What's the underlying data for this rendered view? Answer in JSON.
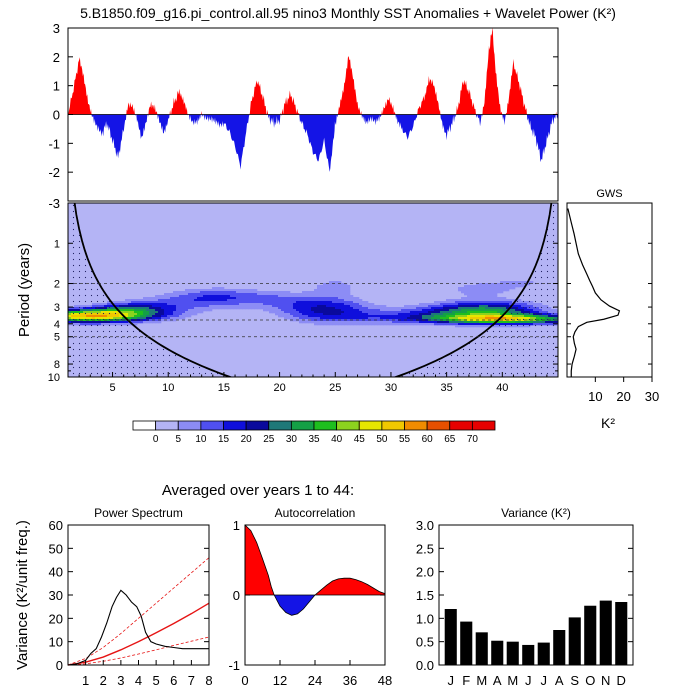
{
  "page": {
    "title": "5.B1850.f09_g16.pi_control.all.95 nino3 Monthly SST Anomalies + Wavelet Power (K²)",
    "averaged_title": "Averaged over years 1 to 44:"
  },
  "colors": {
    "positive": "#ff0000",
    "negative": "#1414e6",
    "line": "#000000",
    "red_fit": "#e61414"
  },
  "chart_data": [
    {
      "id": "anomaly",
      "type": "area",
      "xlim": [
        1,
        45
      ],
      "ylim": [
        -3,
        3
      ],
      "yticks": [
        -3,
        -2,
        -1,
        0,
        1,
        2,
        3
      ],
      "xlabel": "",
      "ylabel": "",
      "baseline": 0,
      "points": [
        [
          1.0,
          0.0
        ],
        [
          1.5,
          0.9
        ],
        [
          2.0,
          1.9
        ],
        [
          2.4,
          1.3
        ],
        [
          2.8,
          0.5
        ],
        [
          3.2,
          0.0
        ],
        [
          3.6,
          -0.4
        ],
        [
          4.0,
          -0.7
        ],
        [
          4.5,
          -0.3
        ],
        [
          5.0,
          -0.9
        ],
        [
          5.5,
          -1.5
        ],
        [
          6.0,
          -0.5
        ],
        [
          6.4,
          0.3
        ],
        [
          6.8,
          0.2
        ],
        [
          7.2,
          -0.2
        ],
        [
          7.6,
          -0.8
        ],
        [
          8.0,
          -0.2
        ],
        [
          8.4,
          0.4
        ],
        [
          8.8,
          0.2
        ],
        [
          9.2,
          -0.3
        ],
        [
          9.6,
          -0.7
        ],
        [
          10.0,
          -0.2
        ],
        [
          10.5,
          0.4
        ],
        [
          11.0,
          0.8
        ],
        [
          11.4,
          0.4
        ],
        [
          11.8,
          -0.1
        ],
        [
          12.2,
          -0.3
        ],
        [
          12.6,
          -0.2
        ],
        [
          13.0,
          0.1
        ],
        [
          13.4,
          -0.1
        ],
        [
          13.8,
          -0.2
        ],
        [
          14.2,
          -0.3
        ],
        [
          14.6,
          -0.4
        ],
        [
          15.0,
          -0.3
        ],
        [
          15.5,
          -0.6
        ],
        [
          16.0,
          -1.1
        ],
        [
          16.5,
          -1.8
        ],
        [
          17.0,
          -0.6
        ],
        [
          17.5,
          0.5
        ],
        [
          18.0,
          1.2
        ],
        [
          18.5,
          0.6
        ],
        [
          19.0,
          -0.1
        ],
        [
          19.5,
          -0.3
        ],
        [
          20.0,
          -0.2
        ],
        [
          20.5,
          0.4
        ],
        [
          21.0,
          0.7
        ],
        [
          21.5,
          0.2
        ],
        [
          22.0,
          -0.3
        ],
        [
          22.5,
          -0.7
        ],
        [
          23.0,
          -1.3
        ],
        [
          23.5,
          -1.6
        ],
        [
          24.0,
          -0.9
        ],
        [
          24.5,
          -2.0
        ],
        [
          24.8,
          -1.0
        ],
        [
          25.0,
          -0.3
        ],
        [
          25.4,
          0.4
        ],
        [
          25.8,
          1.0
        ],
        [
          26.2,
          2.0
        ],
        [
          26.6,
          1.2
        ],
        [
          27.0,
          0.3
        ],
        [
          27.4,
          0.0
        ],
        [
          27.8,
          -0.2
        ],
        [
          28.2,
          -0.1
        ],
        [
          28.6,
          -0.3
        ],
        [
          29.0,
          -0.2
        ],
        [
          29.4,
          0.2
        ],
        [
          29.8,
          0.6
        ],
        [
          30.2,
          0.3
        ],
        [
          30.6,
          -0.2
        ],
        [
          31.0,
          -0.5
        ],
        [
          31.5,
          -0.8
        ],
        [
          32.0,
          -0.4
        ],
        [
          32.5,
          0.2
        ],
        [
          33.0,
          0.6
        ],
        [
          33.4,
          1.2
        ],
        [
          33.8,
          1.0
        ],
        [
          34.2,
          0.4
        ],
        [
          34.6,
          -0.3
        ],
        [
          35.0,
          -0.7
        ],
        [
          35.5,
          -0.3
        ],
        [
          36.0,
          0.2
        ],
        [
          36.5,
          1.2
        ],
        [
          37.0,
          0.8
        ],
        [
          37.5,
          0.2
        ],
        [
          38.0,
          -0.3
        ],
        [
          38.4,
          0.4
        ],
        [
          38.8,
          2.2
        ],
        [
          39.1,
          3.0
        ],
        [
          39.4,
          1.5
        ],
        [
          39.8,
          0.3
        ],
        [
          40.2,
          -0.2
        ],
        [
          40.6,
          0.6
        ],
        [
          41.0,
          1.8
        ],
        [
          41.5,
          1.1
        ],
        [
          42.0,
          0.3
        ],
        [
          42.5,
          -0.4
        ],
        [
          43.0,
          -0.8
        ],
        [
          43.5,
          -1.6
        ],
        [
          44.0,
          -0.9
        ],
        [
          44.5,
          -0.2
        ],
        [
          45.0,
          0.0
        ]
      ]
    },
    {
      "id": "wavelet",
      "type": "heatmap",
      "xlim": [
        1,
        45
      ],
      "ylim": [
        0.5,
        10
      ],
      "yscale": "log",
      "xticks": [
        5,
        10,
        15,
        20,
        25,
        30,
        35,
        40
      ],
      "yticks": [
        1,
        2,
        3,
        4,
        5,
        8,
        10
      ],
      "ylabel": "Period (years)",
      "xlabel": "",
      "dashed_periods": [
        2,
        3.75,
        5
      ],
      "levels": [
        0,
        5,
        10,
        15,
        20,
        25,
        30,
        35,
        40,
        45,
        50,
        55,
        60,
        65,
        70
      ],
      "level_colors": [
        "#ffffff",
        "#b4b4f5",
        "#8c8cf5",
        "#5050f0",
        "#0f0fdc",
        "#0a0a9c",
        "#1e7878",
        "#14a046",
        "#1ebe1e",
        "#8cd21e",
        "#e6e600",
        "#f0c800",
        "#f08c00",
        "#e65000",
        "#e60000"
      ],
      "blobs": [
        {
          "cx": 3.0,
          "cy": 3.5,
          "sx": 4.0,
          "sy": 0.08,
          "amp": 56
        },
        {
          "cx": 6.5,
          "cy": 3.1,
          "sx": 2.5,
          "sy": 0.08,
          "amp": 18
        },
        {
          "cx": 10.0,
          "cy": 2.9,
          "sx": 3.5,
          "sy": 0.12,
          "amp": 10
        },
        {
          "cx": 14.0,
          "cy": 2.5,
          "sx": 3.0,
          "sy": 0.12,
          "amp": 14
        },
        {
          "cx": 16.0,
          "cy": 4.3,
          "sx": 3.0,
          "sy": 0.06,
          "amp": 7
        },
        {
          "cx": 19.0,
          "cy": 2.6,
          "sx": 3.0,
          "sy": 0.12,
          "amp": 8
        },
        {
          "cx": 24.0,
          "cy": 3.1,
          "sx": 3.0,
          "sy": 0.16,
          "amp": 22
        },
        {
          "cx": 25.0,
          "cy": 2.1,
          "sx": 1.5,
          "sy": 0.1,
          "amp": 10
        },
        {
          "cx": 28.0,
          "cy": 3.6,
          "sx": 3.5,
          "sy": 0.1,
          "amp": 8
        },
        {
          "cx": 33.0,
          "cy": 3.4,
          "sx": 3.0,
          "sy": 0.1,
          "amp": 9
        },
        {
          "cx": 38.5,
          "cy": 3.2,
          "sx": 3.5,
          "sy": 0.12,
          "amp": 34
        },
        {
          "cx": 40.5,
          "cy": 3.7,
          "sx": 5.0,
          "sy": 0.06,
          "amp": 42
        },
        {
          "cx": 38.0,
          "cy": 2.2,
          "sx": 2.5,
          "sy": 0.1,
          "amp": 10
        },
        {
          "cx": 42.0,
          "cy": 1.95,
          "sx": 2.0,
          "sy": 0.08,
          "amp": 7
        }
      ]
    },
    {
      "id": "colorbar",
      "type": "legend",
      "labels": [
        "0",
        "5",
        "10",
        "15",
        "20",
        "25",
        "30",
        "35",
        "40",
        "45",
        "50",
        "55",
        "60",
        "65",
        "70"
      ]
    },
    {
      "id": "gws",
      "type": "line",
      "title": "GWS",
      "xlim": [
        0,
        30
      ],
      "xticks": [
        10,
        20,
        30
      ],
      "xlabel": "K²",
      "points": [
        [
          0.3,
          0.55
        ],
        [
          1.5,
          0.7
        ],
        [
          2.5,
          0.85
        ],
        [
          3.2,
          1.0
        ],
        [
          4.0,
          1.2
        ],
        [
          5.5,
          1.45
        ],
        [
          7.0,
          1.7
        ],
        [
          8.0,
          1.9
        ],
        [
          9.0,
          2.1
        ],
        [
          10.0,
          2.35
        ],
        [
          12.0,
          2.65
        ],
        [
          15.0,
          2.95
        ],
        [
          18.5,
          3.2
        ],
        [
          18.0,
          3.45
        ],
        [
          13.0,
          3.7
        ],
        [
          7.0,
          3.9
        ],
        [
          4.0,
          4.2
        ],
        [
          2.8,
          4.6
        ],
        [
          2.2,
          5.0
        ],
        [
          2.6,
          5.6
        ],
        [
          3.2,
          6.2
        ],
        [
          2.6,
          7.0
        ],
        [
          1.8,
          8.0
        ],
        [
          1.5,
          9.0
        ],
        [
          1.5,
          10.0
        ]
      ]
    },
    {
      "id": "power_spectrum",
      "type": "line",
      "title": "Power Spectrum",
      "xlim": [
        0,
        8
      ],
      "ylim": [
        0,
        60
      ],
      "xticks": [
        0,
        1,
        2,
        3,
        4,
        5,
        6,
        7,
        8
      ],
      "yticks": [
        0,
        10,
        20,
        30,
        40,
        50,
        60
      ],
      "ylabel": "Variance (K²/unit freq.)",
      "spectrum": [
        [
          0,
          0
        ],
        [
          0.5,
          0.5
        ],
        [
          1,
          2
        ],
        [
          1.3,
          5
        ],
        [
          1.6,
          7
        ],
        [
          1.9,
          12
        ],
        [
          2.2,
          18
        ],
        [
          2.5,
          25
        ],
        [
          2.75,
          29
        ],
        [
          3.0,
          32
        ],
        [
          3.3,
          30
        ],
        [
          3.6,
          27
        ],
        [
          3.9,
          25
        ],
        [
          4.15,
          21
        ],
        [
          4.4,
          14
        ],
        [
          4.7,
          10
        ],
        [
          5.0,
          9
        ],
        [
          5.5,
          8
        ],
        [
          6.0,
          7.5
        ],
        [
          6.5,
          7
        ],
        [
          7.0,
          7
        ],
        [
          7.5,
          7
        ],
        [
          8.0,
          7
        ]
      ],
      "red_noise": [
        [
          0,
          0
        ],
        [
          1,
          1.2
        ],
        [
          2,
          3.4
        ],
        [
          3,
          6.5
        ],
        [
          4,
          10
        ],
        [
          5,
          13.8
        ],
        [
          6,
          17.8
        ],
        [
          7,
          22
        ],
        [
          8,
          26.5
        ]
      ],
      "red_noise_upper": [
        [
          0,
          0
        ],
        [
          1,
          2.8
        ],
        [
          2,
          7.5
        ],
        [
          3,
          13.5
        ],
        [
          4,
          20
        ],
        [
          5,
          26.5
        ],
        [
          6,
          33
        ],
        [
          7,
          39.5
        ],
        [
          8,
          46
        ]
      ],
      "red_noise_lower": [
        [
          0,
          0
        ],
        [
          1,
          0.5
        ],
        [
          2,
          1.6
        ],
        [
          3,
          3.0
        ],
        [
          4,
          4.7
        ],
        [
          5,
          6.5
        ],
        [
          6,
          8.4
        ],
        [
          7,
          10.2
        ],
        [
          8,
          12
        ]
      ]
    },
    {
      "id": "autocorrelation",
      "type": "area",
      "title": "Autocorrelation",
      "xlim": [
        0,
        48
      ],
      "ylim": [
        -1,
        1
      ],
      "xticks": [
        0,
        12,
        24,
        36,
        48
      ],
      "yticks": [
        -1,
        0,
        1
      ],
      "points": [
        [
          0,
          1.0
        ],
        [
          2,
          0.92
        ],
        [
          4,
          0.75
        ],
        [
          6,
          0.52
        ],
        [
          8,
          0.28
        ],
        [
          9,
          0.12
        ],
        [
          10,
          0.0
        ],
        [
          12,
          -0.16
        ],
        [
          14,
          -0.25
        ],
        [
          16,
          -0.29
        ],
        [
          18,
          -0.27
        ],
        [
          20,
          -0.2
        ],
        [
          22,
          -0.1
        ],
        [
          24,
          0.0
        ],
        [
          26,
          0.07
        ],
        [
          28,
          0.14
        ],
        [
          30,
          0.2
        ],
        [
          32,
          0.23
        ],
        [
          34,
          0.24
        ],
        [
          36,
          0.24
        ],
        [
          38,
          0.22
        ],
        [
          40,
          0.19
        ],
        [
          42,
          0.15
        ],
        [
          44,
          0.1
        ],
        [
          46,
          0.05
        ],
        [
          48,
          0.02
        ]
      ]
    },
    {
      "id": "monthly_variance",
      "type": "bar",
      "title": "Variance (K²)",
      "ylim": [
        0,
        3
      ],
      "yticks": [
        "0.0",
        "0.5",
        "1.0",
        "1.5",
        "2.0",
        "2.5",
        "3.0"
      ],
      "categories": [
        "J",
        "F",
        "M",
        "A",
        "M",
        "J",
        "J",
        "A",
        "S",
        "O",
        "N",
        "D"
      ],
      "values": [
        1.2,
        0.93,
        0.7,
        0.52,
        0.5,
        0.43,
        0.48,
        0.75,
        1.02,
        1.27,
        1.38,
        1.35
      ]
    }
  ]
}
